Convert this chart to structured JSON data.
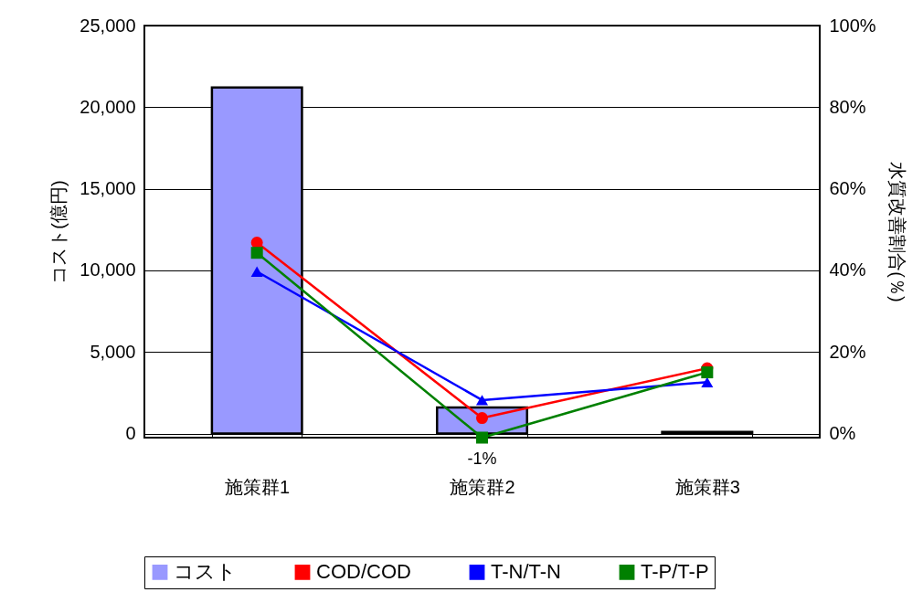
{
  "chart_data": {
    "type": "bar",
    "xlabel": null,
    "ylabel": "コスト(億円)",
    "y2label": "水質改善割合(％)",
    "categories": [
      "施策群1",
      "施策群2",
      "施策群3"
    ],
    "series": [
      {
        "name": "コスト",
        "color": "#9999ff",
        "values": [
          21200,
          1600,
          100
        ]
      },
      {
        "name": "COD/COD",
        "type": "line",
        "axis": "y2",
        "marker": "circle",
        "color": "#ff0000",
        "values": [
          46.8,
          3.8,
          16
        ]
      },
      {
        "name": "T-N/T-N",
        "type": "line",
        "axis": "y2",
        "marker": "triangle",
        "color": "#0000ff",
        "values": [
          39.7,
          8.2,
          12.6
        ]
      },
      {
        "name": "T-P/T-P",
        "type": "line",
        "axis": "y2",
        "marker": "square",
        "color": "#008000",
        "values": [
          44.3,
          -1,
          15
        ],
        "value_labels": [
          null,
          "-1%",
          null
        ]
      }
    ],
    "ylim": [
      -250,
      25000
    ],
    "yticks": [
      0,
      {
        "value": 5000,
        "label": "5,000"
      },
      {
        "value": 10000,
        "label": "10,000"
      },
      {
        "value": 15000,
        "label": "15,000"
      },
      {
        "value": 20000,
        "label": "20,000"
      },
      {
        "value": 25000,
        "label": "25,000"
      }
    ],
    "y2lim": [
      -1,
      100
    ],
    "y2ticks": [
      {
        "value": 0,
        "label": "0%"
      },
      {
        "value": 20,
        "label": "20%"
      },
      {
        "value": 40,
        "label": "40%"
      },
      {
        "value": 60,
        "label": "60%"
      },
      {
        "value": 80,
        "label": "80%"
      },
      {
        "value": 100,
        "label": "100%"
      }
    ],
    "grid": "y",
    "legend": "bottom",
    "line_style": "solid"
  }
}
